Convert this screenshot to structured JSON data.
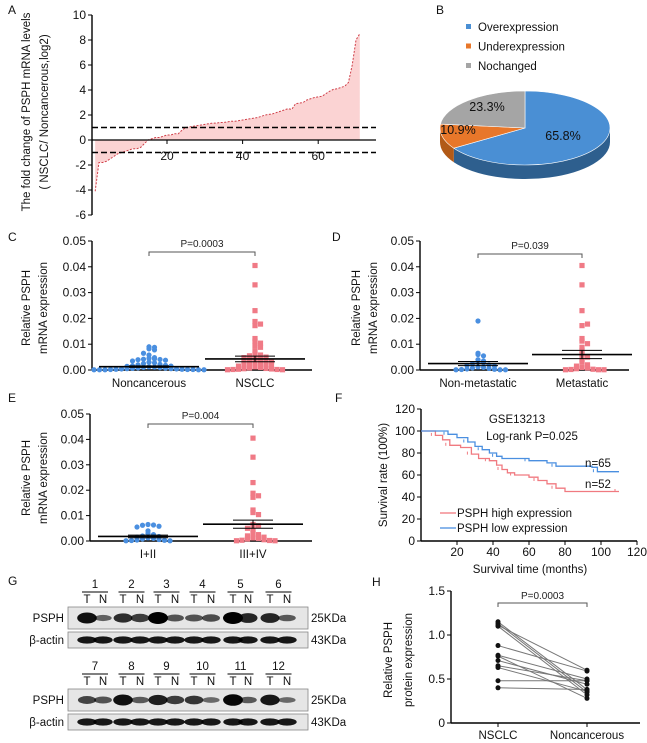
{
  "panel_letters": [
    "A",
    "B",
    "C",
    "D",
    "E",
    "F",
    "G",
    "H"
  ],
  "chart_data": [
    {
      "panel": "A",
      "type": "area",
      "ylabel_line1": "The fold change of PSPH mRNA levels",
      "ylabel_line2": "( NSCLC/ Noncancerous,log2)",
      "ylim": [
        -6,
        10
      ],
      "yticks": [
        "-6",
        "-4",
        "-2",
        "0",
        "2",
        "4",
        "6",
        "8",
        "10"
      ],
      "xticks": [
        "20",
        "40",
        "60"
      ],
      "threshold_lines": [
        1,
        -1
      ],
      "colors": {
        "line": "#d0404a",
        "fill": "#fbd3d3"
      },
      "values": [
        -4.1,
        -1.8,
        -1.8,
        -1.7,
        -1.5,
        -1.3,
        -1.1,
        -1.0,
        -0.9,
        -0.8,
        -0.7,
        -0.7,
        -0.6,
        -0.3,
        0.0,
        0.1,
        0.2,
        0.2,
        0.3,
        0.4,
        0.4,
        0.5,
        0.5,
        0.8,
        1.0,
        1.05,
        1.1,
        1.15,
        1.2,
        1.25,
        1.3,
        1.35,
        1.35,
        1.4,
        1.4,
        1.45,
        1.5,
        1.5,
        1.55,
        1.6,
        1.65,
        1.7,
        1.75,
        1.8,
        1.9,
        2.0,
        2.05,
        2.1,
        2.2,
        2.3,
        2.4,
        2.5,
        2.45,
        2.9,
        2.95,
        3.0,
        3.2,
        3.3,
        3.4,
        3.45,
        3.5,
        3.7,
        3.9,
        4.05,
        4.1,
        4.2,
        4.3,
        4.6,
        6.0,
        8.0,
        8.5
      ]
    },
    {
      "panel": "B",
      "type": "pie",
      "slices": [
        {
          "name": "Overexpression",
          "value": 65.8,
          "label": "65.8%",
          "color": "#4a8fd4",
          "side": "#2e5f8e"
        },
        {
          "name": "Underexpression",
          "value": 10.9,
          "label": "10.9%",
          "color": "#e8772a",
          "side": "#b25a17"
        },
        {
          "name": "Nochanged",
          "value": 23.3,
          "label": "23.3%",
          "color": "#a5a5a5",
          "side": "#7a7a7a"
        }
      ],
      "legend": "top"
    },
    {
      "panel": "C",
      "type": "scatter",
      "ylabel_line1": "Relative PSPH",
      "ylabel_line2": "mRNA expression",
      "ylim": [
        0,
        0.05
      ],
      "yticks": [
        "0.00",
        "0.01",
        "0.02",
        "0.03",
        "0.04",
        "0.05"
      ],
      "pvalue": "P=0.0003",
      "groups": [
        {
          "name": "Noncancerous",
          "mean": 0.0013,
          "sem": 0.0003,
          "color": "#4a8fe0",
          "values": [
            0.009,
            0.0088,
            0.0082,
            0.0078,
            0.0065,
            0.0058,
            0.0048,
            0.0045,
            0.0043,
            0.0042,
            0.0041,
            0.004,
            0.0038,
            0.0035,
            0.003,
            0.0028,
            0.0025,
            0.0022,
            0.002,
            0.0018,
            0.0016,
            0.0015,
            0.0014,
            0.0012,
            0.0011,
            0.001,
            0.0009,
            0.0008,
            0.0007,
            0.0006,
            0.0005,
            0.0005,
            0.0004,
            0.0004,
            0.0003,
            0.0003,
            0.0002,
            0.0002,
            0.0002,
            0.0001,
            0.0001,
            0.0001,
            0.0001,
            0.0001
          ]
        },
        {
          "name": "NSCLC",
          "mean": 0.0043,
          "sem": 0.0011,
          "color": "#f07a86",
          "values": [
            0.0405,
            0.033,
            0.023,
            0.0188,
            0.0172,
            0.0178,
            0.0112,
            0.0104,
            0.0122,
            0.0095,
            0.0088,
            0.0075,
            0.006,
            0.0058,
            0.0055,
            0.005,
            0.0048,
            0.0045,
            0.0042,
            0.004,
            0.0038,
            0.0035,
            0.0032,
            0.003,
            0.0028,
            0.0025,
            0.0022,
            0.002,
            0.0018,
            0.0015,
            0.0012,
            0.001,
            0.0008,
            0.0006,
            0.0005,
            0.0004,
            0.0003,
            0.0002,
            0.0002,
            0.0001,
            0.0001
          ]
        }
      ]
    },
    {
      "panel": "D",
      "type": "scatter",
      "ylabel_line1": "Relative PSPH",
      "ylabel_line2": "mRNA expression",
      "ylim": [
        0,
        0.05
      ],
      "yticks": [
        "0.00",
        "0.01",
        "0.02",
        "0.03",
        "0.04",
        "0.05"
      ],
      "pvalue": "P=0.039",
      "groups": [
        {
          "name": "Non-metastatic",
          "mean": 0.0025,
          "sem": 0.0008,
          "color": "#4a8fe0",
          "values": [
            0.019,
            0.0065,
            0.006,
            0.0055,
            0.004,
            0.0035,
            0.003,
            0.0028,
            0.0025,
            0.002,
            0.0018,
            0.0015,
            0.0012,
            0.001,
            0.0008,
            0.0006,
            0.0004,
            0.0003,
            0.0002,
            0.0001,
            0.0001,
            0.0001
          ]
        },
        {
          "name": "Metastatic",
          "mean": 0.006,
          "sem": 0.0016,
          "color": "#f07a86",
          "values": [
            0.0405,
            0.033,
            0.023,
            0.0172,
            0.0178,
            0.0112,
            0.0122,
            0.0102,
            0.0088,
            0.0075,
            0.006,
            0.005,
            0.004,
            0.003,
            0.002,
            0.0015,
            0.001,
            0.0008,
            0.0005,
            0.0003,
            0.0002,
            0.0001,
            0.0001,
            0.0001
          ]
        }
      ]
    },
    {
      "panel": "E",
      "type": "scatter",
      "ylabel_line1": "Relative PSPH",
      "ylabel_line2": "mRNA expression",
      "ylim": [
        0,
        0.05
      ],
      "yticks": [
        "0.00",
        "0.01",
        "0.02",
        "0.03",
        "0.04",
        "0.05"
      ],
      "pvalue": "P=0.004",
      "groups": [
        {
          "name": "I+II",
          "mean": 0.0018,
          "sem": 0.0005,
          "color": "#4a8fe0",
          "values": [
            0.0065,
            0.0063,
            0.0062,
            0.0058,
            0.0055,
            0.004,
            0.003,
            0.0025,
            0.002,
            0.0018,
            0.0015,
            0.0012,
            0.001,
            0.0008,
            0.0006,
            0.0004,
            0.0003,
            0.0002,
            0.0001,
            0.0001
          ]
        },
        {
          "name": "III+IV",
          "mean": 0.0066,
          "sem": 0.0016,
          "color": "#f07a86",
          "values": [
            0.0405,
            0.033,
            0.023,
            0.0188,
            0.0172,
            0.0178,
            0.0112,
            0.0104,
            0.0122,
            0.0065,
            0.006,
            0.005,
            0.0045,
            0.003,
            0.0025,
            0.002,
            0.0015,
            0.0012,
            0.001,
            0.0008,
            0.0005,
            0.0003,
            0.0002,
            0.0001,
            0.0001
          ]
        }
      ]
    },
    {
      "panel": "F",
      "type": "line",
      "title": "GSE13213",
      "subtitle": "Log-rank P=0.025",
      "ylabel": "Survival rate (100%)",
      "xlabel": "Survival time (months)",
      "ylim": [
        0,
        120
      ],
      "xlim": [
        0,
        120
      ],
      "yticks": [
        "0",
        "20",
        "40",
        "60",
        "80",
        "100",
        "120"
      ],
      "xticks": [
        "20",
        "40",
        "60",
        "80",
        "100",
        "120"
      ],
      "legend": "bottom-left",
      "series": [
        {
          "name": "PSPH high expression",
          "n_label": "n=52",
          "color": "#f07a80",
          "points": [
            [
              0,
              100
            ],
            [
              5,
              100
            ],
            [
              8,
              96
            ],
            [
              12,
              92
            ],
            [
              16,
              87
            ],
            [
              22,
              85
            ],
            [
              28,
              79
            ],
            [
              32,
              75
            ],
            [
              38,
              73
            ],
            [
              42,
              69
            ],
            [
              45,
              65
            ],
            [
              48,
              62
            ],
            [
              52,
              60
            ],
            [
              60,
              58
            ],
            [
              65,
              55
            ],
            [
              70,
              52
            ],
            [
              75,
              48
            ],
            [
              80,
              45
            ],
            [
              110,
              45
            ]
          ]
        },
        {
          "name": "PSPH low expression",
          "n_label": "n=65",
          "color": "#4a8fe0",
          "points": [
            [
              0,
              100
            ],
            [
              12,
              100
            ],
            [
              15,
              97
            ],
            [
              20,
              94
            ],
            [
              26,
              90
            ],
            [
              30,
              86
            ],
            [
              34,
              83
            ],
            [
              38,
              80
            ],
            [
              42,
              77
            ],
            [
              45,
              75
            ],
            [
              60,
              73
            ],
            [
              70,
              71
            ],
            [
              75,
              68
            ],
            [
              95,
              67
            ],
            [
              98,
              63
            ],
            [
              110,
              63
            ]
          ]
        }
      ]
    },
    {
      "panel": "H",
      "type": "line",
      "ylabel_line1": "Relative PSPH",
      "ylabel_line2": "protein expression",
      "ylim": [
        0,
        1.5
      ],
      "yticks": [
        "0",
        "0.5",
        "1.0",
        "1.5"
      ],
      "categories": [
        "NSCLC",
        "Noncancerous"
      ],
      "pvalue": "P=0.0003",
      "pairs": [
        [
          1.15,
          0.38
        ],
        [
          1.13,
          0.35
        ],
        [
          1.11,
          0.6
        ],
        [
          1.1,
          0.32
        ],
        [
          0.88,
          0.59
        ],
        [
          0.77,
          0.5
        ],
        [
          0.76,
          0.28
        ],
        [
          0.71,
          0.44
        ],
        [
          0.65,
          0.48
        ],
        [
          0.63,
          0.36
        ],
        [
          0.48,
          0.48
        ],
        [
          0.4,
          0.38
        ]
      ]
    }
  ],
  "blot": {
    "panel": "G",
    "blocks": [
      {
        "samples": [
          "1",
          "2",
          "3",
          "4",
          "5",
          "6"
        ]
      },
      {
        "samples": [
          "7",
          "8",
          "9",
          "10",
          "11",
          "12"
        ]
      }
    ],
    "lane_labels": [
      "T",
      "N"
    ],
    "rows": [
      {
        "name": "PSPH",
        "size": "25KDa"
      },
      {
        "name": "β-actin",
        "size": "43KDa"
      }
    ]
  }
}
